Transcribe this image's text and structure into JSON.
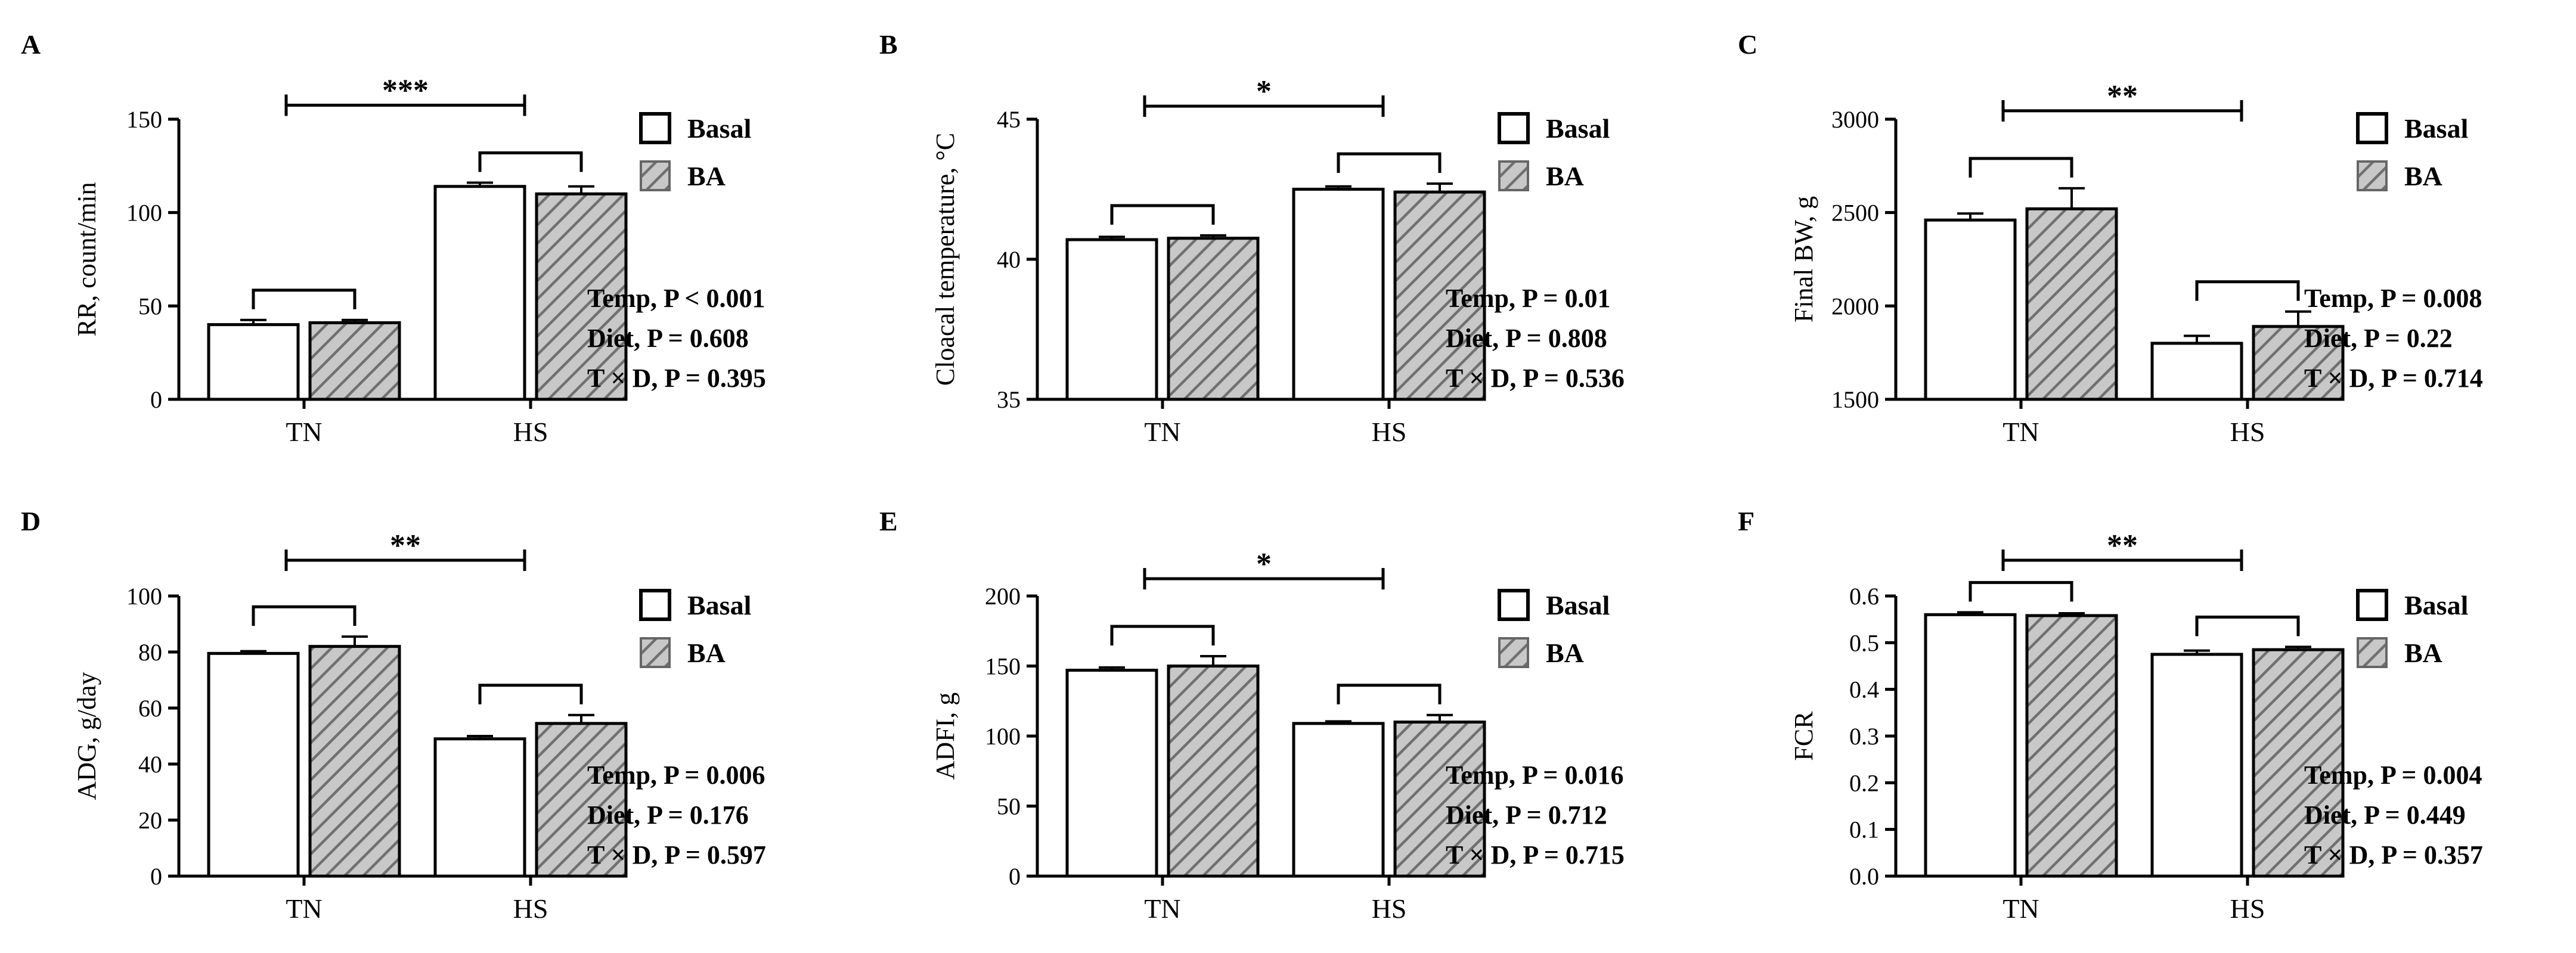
{
  "legend_labels": {
    "basal": "Basal",
    "ba": "BA"
  },
  "colors": {
    "basal_fill": "#ffffff",
    "ba_fill": "#c8c8c8",
    "ba_hatch": "#777777",
    "ink": "#000000"
  },
  "chart_data": [
    {
      "panel": "A",
      "type": "bar",
      "categories": [
        "TN",
        "HS"
      ],
      "series": [
        {
          "name": "Basal",
          "values": [
            40,
            114
          ],
          "errors": [
            2.5,
            2.0
          ]
        },
        {
          "name": "BA",
          "values": [
            41,
            110
          ],
          "errors": [
            1.5,
            4.0
          ]
        }
      ],
      "ylabel": "RR, count/min",
      "ylim": [
        0,
        150
      ],
      "yticks": [
        0,
        50,
        100,
        150
      ],
      "significance": "***",
      "stats": [
        "Temp, P < 0.001",
        "Diet, P = 0.608",
        "T × D, P = 0.395"
      ]
    },
    {
      "panel": "B",
      "type": "bar",
      "categories": [
        "TN",
        "HS"
      ],
      "series": [
        {
          "name": "Basal",
          "values": [
            40.7,
            42.5
          ],
          "errors": [
            0.1,
            0.1
          ]
        },
        {
          "name": "BA",
          "values": [
            40.75,
            42.4
          ],
          "errors": [
            0.1,
            0.3
          ]
        }
      ],
      "ylabel": "Cloacal temperature, °C",
      "ylim": [
        35,
        45
      ],
      "yticks": [
        35,
        40,
        45
      ],
      "significance": "*",
      "stats": [
        "Temp, P = 0.01",
        "Diet, P = 0.808",
        "T × D, P = 0.536"
      ]
    },
    {
      "panel": "C",
      "type": "bar",
      "categories": [
        "TN",
        "HS"
      ],
      "series": [
        {
          "name": "Basal",
          "values": [
            2460,
            1800
          ],
          "errors": [
            35,
            40
          ]
        },
        {
          "name": "BA",
          "values": [
            2520,
            1890
          ],
          "errors": [
            110,
            80
          ]
        }
      ],
      "ylabel": "Final BW, g",
      "ylim": [
        1500,
        3000
      ],
      "yticks": [
        1500,
        2000,
        2500,
        3000
      ],
      "significance": "**",
      "stats": [
        "Temp, P = 0.008",
        "Diet, P = 0.22",
        "T × D, P = 0.714"
      ]
    },
    {
      "panel": "D",
      "type": "bar",
      "categories": [
        "TN",
        "HS"
      ],
      "series": [
        {
          "name": "Basal",
          "values": [
            79.5,
            49
          ],
          "errors": [
            0.8,
            1.0
          ]
        },
        {
          "name": "BA",
          "values": [
            82,
            54.5
          ],
          "errors": [
            3.5,
            3.0
          ]
        }
      ],
      "ylabel": "ADG, g/day",
      "ylim": [
        0,
        100
      ],
      "yticks": [
        0,
        20,
        40,
        60,
        80,
        100
      ],
      "significance": "**",
      "stats": [
        "Temp, P = 0.006",
        "Diet, P = 0.176",
        "T × D, P = 0.597"
      ]
    },
    {
      "panel": "E",
      "type": "bar",
      "categories": [
        "TN",
        "HS"
      ],
      "series": [
        {
          "name": "Basal",
          "values": [
            147,
            109
          ],
          "errors": [
            2,
            1.5
          ]
        },
        {
          "name": "BA",
          "values": [
            150,
            110
          ],
          "errors": [
            7,
            5
          ]
        }
      ],
      "ylabel": "ADFI, g",
      "ylim": [
        0,
        200
      ],
      "yticks": [
        0,
        50,
        100,
        150,
        200
      ],
      "significance": "*",
      "stats": [
        "Temp, P = 0.016",
        "Diet, P = 0.712",
        "T × D, P = 0.715"
      ]
    },
    {
      "panel": "F",
      "type": "bar",
      "categories": [
        "TN",
        "HS"
      ],
      "series": [
        {
          "name": "Basal",
          "values": [
            0.56,
            0.475
          ],
          "errors": [
            0.005,
            0.008
          ]
        },
        {
          "name": "BA",
          "values": [
            0.558,
            0.485
          ],
          "errors": [
            0.005,
            0.006
          ]
        }
      ],
      "ylabel": "FCR",
      "ylim": [
        0,
        0.6
      ],
      "yticks": [
        0.0,
        0.1,
        0.2,
        0.3,
        0.4,
        0.5,
        0.6
      ],
      "ytick_decimals": 1,
      "significance": "**",
      "stats": [
        "Temp, P = 0.004",
        "Diet, P = 0.449",
        "T × D, P = 0.357"
      ]
    }
  ]
}
